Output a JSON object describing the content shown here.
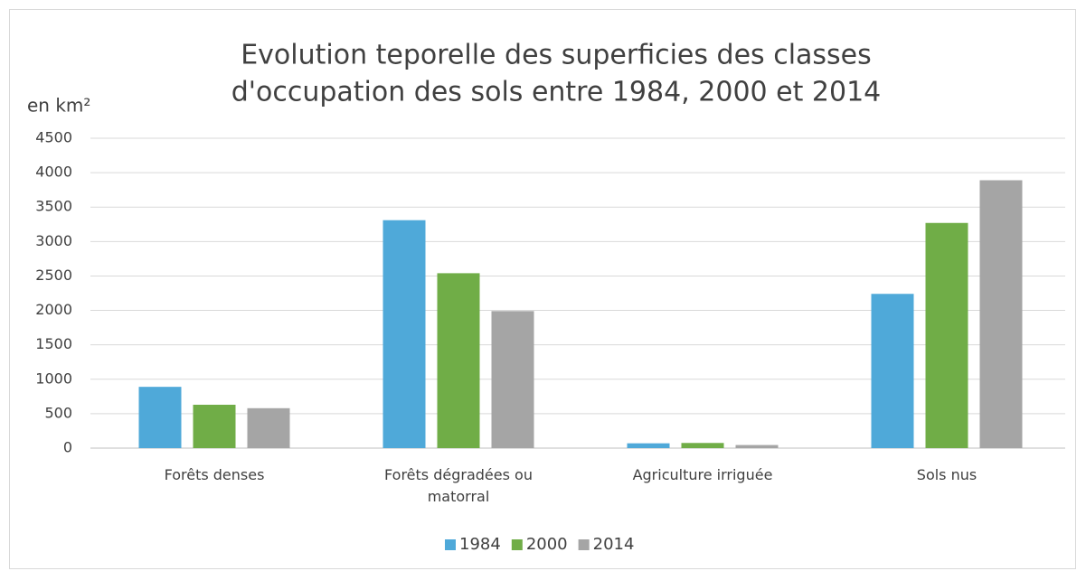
{
  "chart_data": {
    "type": "bar",
    "title": [
      "Evolution teporelle des superficies des classes",
      "d'occupation des sols entre 1984, 2000 et 2014"
    ],
    "y_label": "en km²",
    "categories": [
      "Forêts denses",
      "Forêts dégradées ou matorral",
      "Agriculture irriguée",
      "Sols nus"
    ],
    "series": [
      {
        "name": "1984",
        "color": "#4fa9d9",
        "values": [
          890,
          3310,
          70,
          2240
        ]
      },
      {
        "name": "2000",
        "color": "#70ad47",
        "values": [
          630,
          2540,
          75,
          3270
        ]
      },
      {
        "name": "2014",
        "color": "#a5a5a5",
        "values": [
          580,
          1990,
          45,
          3890
        ]
      }
    ],
    "ylim": [
      0,
      4500
    ],
    "yticks": [
      0,
      500,
      1000,
      1500,
      2000,
      2500,
      3000,
      3500,
      4000,
      4500
    ],
    "grid": true,
    "legend": "bottom"
  }
}
